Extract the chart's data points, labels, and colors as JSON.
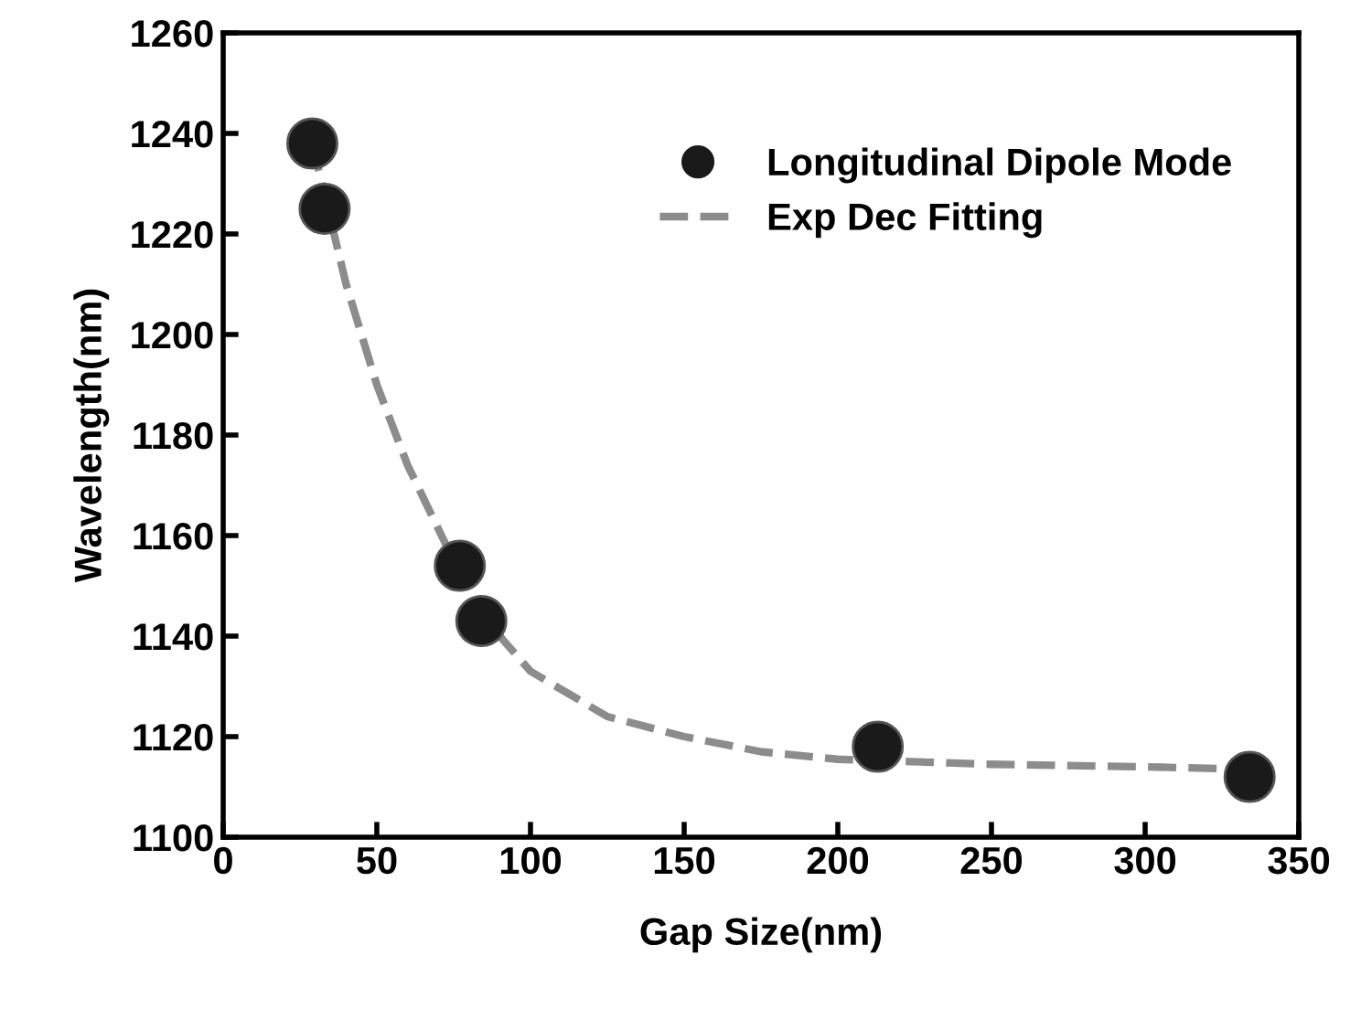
{
  "chart_data": {
    "type": "scatter",
    "xlabel": "Gap Size(nm)",
    "ylabel": "Wavelength(nm)",
    "xlim": [
      0,
      350
    ],
    "xticks": [
      0,
      50,
      100,
      150,
      200,
      250,
      300,
      350
    ],
    "ylim": [
      1100,
      1260
    ],
    "yticks": [
      1100,
      1120,
      1140,
      1160,
      1180,
      1200,
      1220,
      1240,
      1260
    ],
    "grid": false,
    "legend": "top right",
    "series": [
      {
        "name": "Longitudinal Dipole Mode",
        "marker": "circle",
        "color": "#1a1a1a",
        "x": [
          29,
          33,
          77,
          84,
          213,
          334
        ],
        "values": [
          1238,
          1225,
          1154,
          1143,
          1118,
          1112
        ]
      },
      {
        "name": "Exp Dec Fitting",
        "type": "line",
        "marker": "none",
        "line_style": "dashed",
        "color": "#8c8c8c",
        "x": [
          29,
          40,
          50,
          60,
          75,
          90,
          100,
          125,
          150,
          175,
          200,
          250,
          300,
          335
        ],
        "values": [
          1238,
          1210,
          1190,
          1174,
          1155,
          1140,
          1133,
          1124,
          1120,
          1117,
          1115.5,
          1114.5,
          1114,
          1113.5
        ]
      }
    ]
  }
}
